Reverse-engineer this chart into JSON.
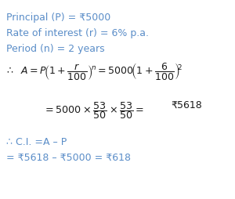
{
  "bg_color": "#ffffff",
  "orange": "#5b8dd9",
  "black": "#1a1a1a",
  "figsize": [
    3.0,
    2.54
  ],
  "dpi": 100,
  "orange_color": "#5b8dd9",
  "line1": "Principal (P) = ₹5000",
  "line2": "Rate of interest (r) = 6% p.a.",
  "line3": "Period (n) = 2 years",
  "ci_line1": "∴ C.I. =A – P",
  "ci_line2": "= ₹5618 – ₹5000 = ₹618"
}
